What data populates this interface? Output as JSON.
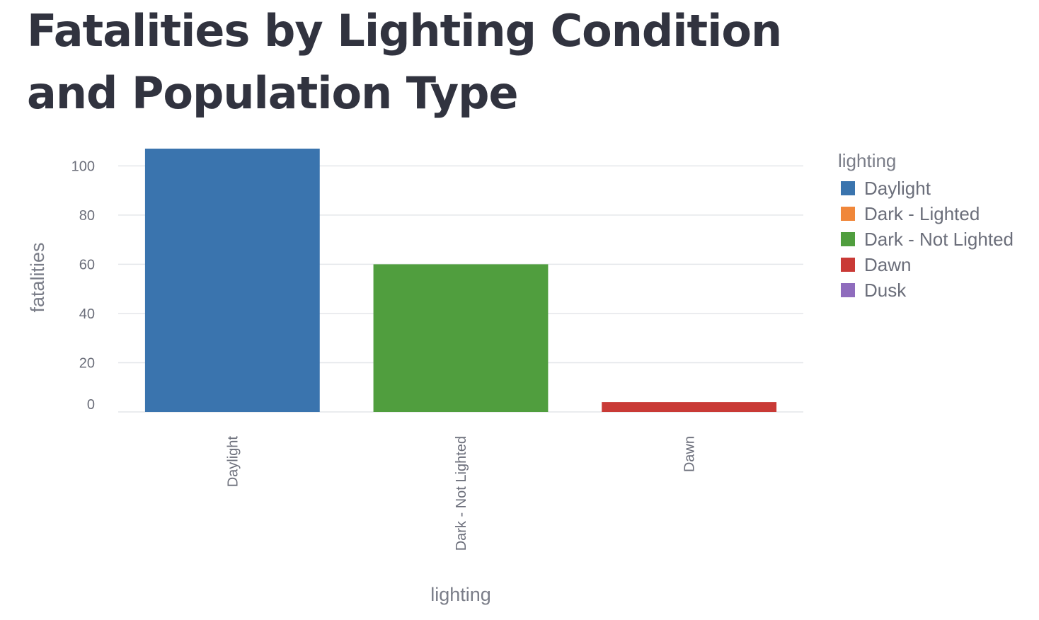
{
  "page": {
    "title": "Fatalities by Lighting Condition and Population Type"
  },
  "chart_data": {
    "type": "bar",
    "categories": [
      "Daylight",
      "Dark - Not Lighted",
      "Dawn"
    ],
    "values": [
      107,
      60,
      4
    ],
    "xlabel": "lighting",
    "ylabel": "fatalities",
    "ylim": [
      0,
      107
    ],
    "yticks": [
      0,
      20,
      40,
      60,
      80,
      100
    ],
    "grid": true,
    "legend": {
      "title": "lighting",
      "placement": "right",
      "entries": [
        {
          "label": "Daylight",
          "color": "#3a74ae"
        },
        {
          "label": "Dark - Lighted",
          "color": "#f0873a"
        },
        {
          "label": "Dark - Not Lighted",
          "color": "#509e3e"
        },
        {
          "label": "Dawn",
          "color": "#c93a36"
        },
        {
          "label": "Dusk",
          "color": "#8f6cbd"
        }
      ]
    },
    "bar_colors": [
      "#3a74ae",
      "#509e3e",
      "#c93a36"
    ]
  }
}
